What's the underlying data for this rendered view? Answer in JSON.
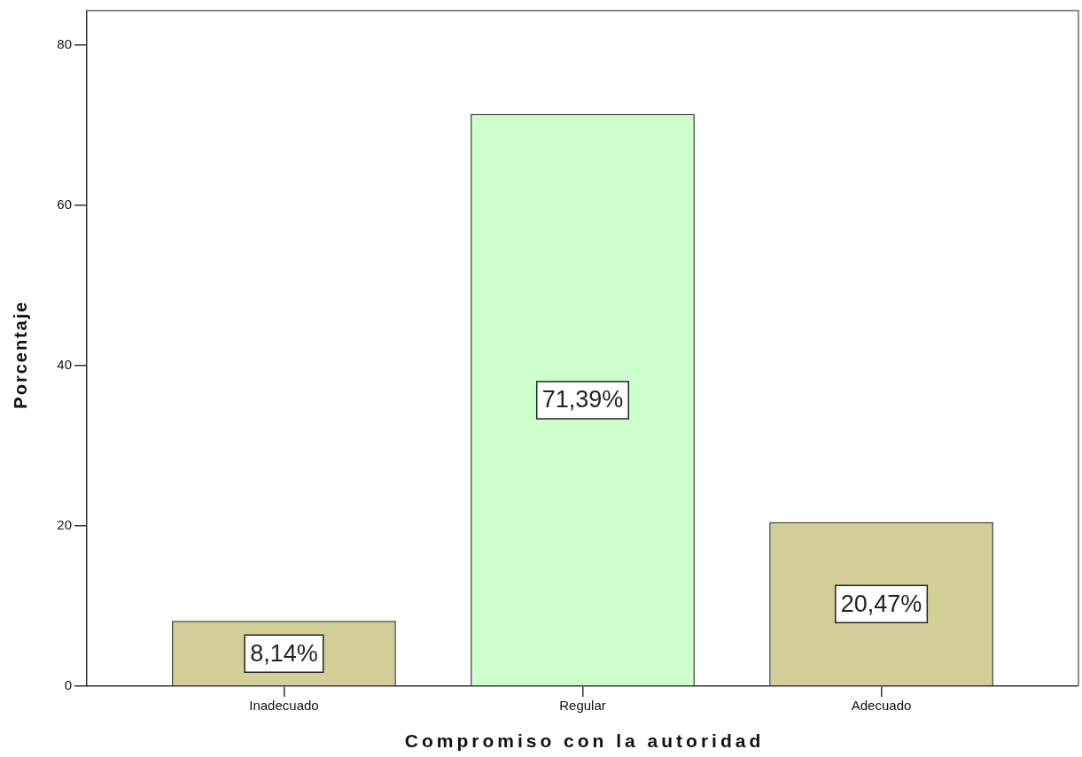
{
  "chart_data": {
    "type": "bar",
    "xlabel": "Compromiso con la autoridad",
    "ylabel": "Porcentaje",
    "categories": [
      "Inadecuado",
      "Regular",
      "Adecuado"
    ],
    "values": [
      8.14,
      71.39,
      20.47
    ],
    "colors": [
      "#d3ce97",
      "#ccffcc",
      "#d3ce97"
    ],
    "value_labels": [
      "8,14%",
      "71,39%",
      "20,47%"
    ],
    "ylim": [
      0,
      84.3
    ],
    "yticks": [
      0,
      20,
      40,
      60,
      80
    ],
    "grid": false
  }
}
